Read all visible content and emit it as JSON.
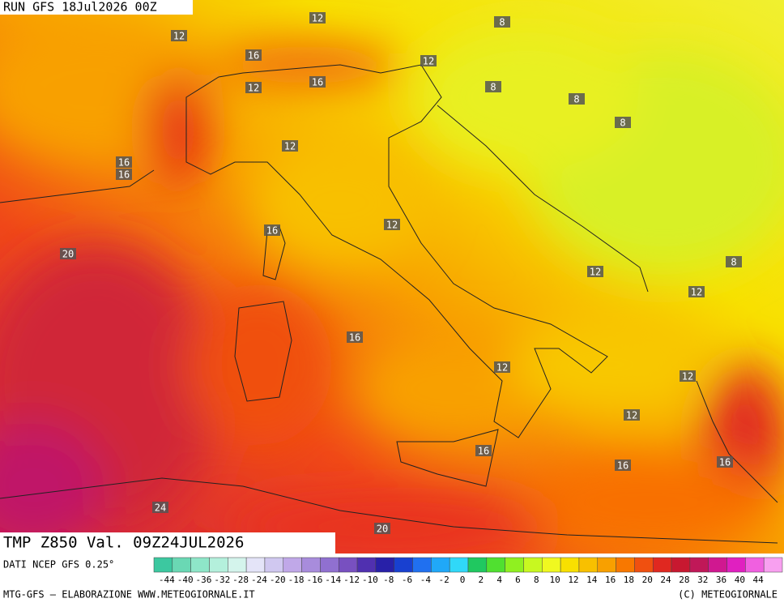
{
  "header": {
    "run": "RUN GFS 18Jul2026 00Z"
  },
  "map": {
    "contour_labels": [
      12,
      8,
      12,
      16,
      12,
      16,
      12,
      8,
      8,
      8,
      12,
      16,
      16,
      12,
      16,
      20,
      12,
      8,
      12,
      16,
      12,
      12,
      12,
      16,
      16,
      16,
      24,
      20
    ]
  },
  "title": "TMP Z850 Val. 09Z24JUL2026",
  "source": "DATI NCEP GFS 0.25°",
  "legend": {
    "labels": [
      -44,
      -40,
      -36,
      -32,
      -28,
      -24,
      -20,
      -18,
      -16,
      -14,
      -12,
      -10,
      -8,
      -6,
      -4,
      -2,
      0,
      2,
      4,
      6,
      8,
      10,
      12,
      14,
      16,
      18,
      20,
      24,
      28,
      32,
      36,
      40,
      44
    ],
    "colors": [
      "#3cc8a0",
      "#6ad8b4",
      "#8ee6c8",
      "#b4f0dc",
      "#d4f4ec",
      "#e4e4f8",
      "#d0c8f0",
      "#c0a8e8",
      "#a88cdc",
      "#9070d0",
      "#7850c0",
      "#5030b0",
      "#2820a8",
      "#1840d0",
      "#2070f0",
      "#20a8f8",
      "#30d8f8",
      "#20c860",
      "#50e030",
      "#90f020",
      "#c8f820",
      "#f0f820",
      "#f8e000",
      "#f8c000",
      "#f8a000",
      "#f87800",
      "#f05010",
      "#e02820",
      "#c81830",
      "#c01858",
      "#d01890",
      "#e020c0",
      "#f060e0",
      "#f8a0f0"
    ]
  },
  "footer": {
    "left": "MTG-GFS — ELABORAZIONE WWW.METEOGIORNALE.IT",
    "right": "(C) METEOGIORNALE"
  }
}
